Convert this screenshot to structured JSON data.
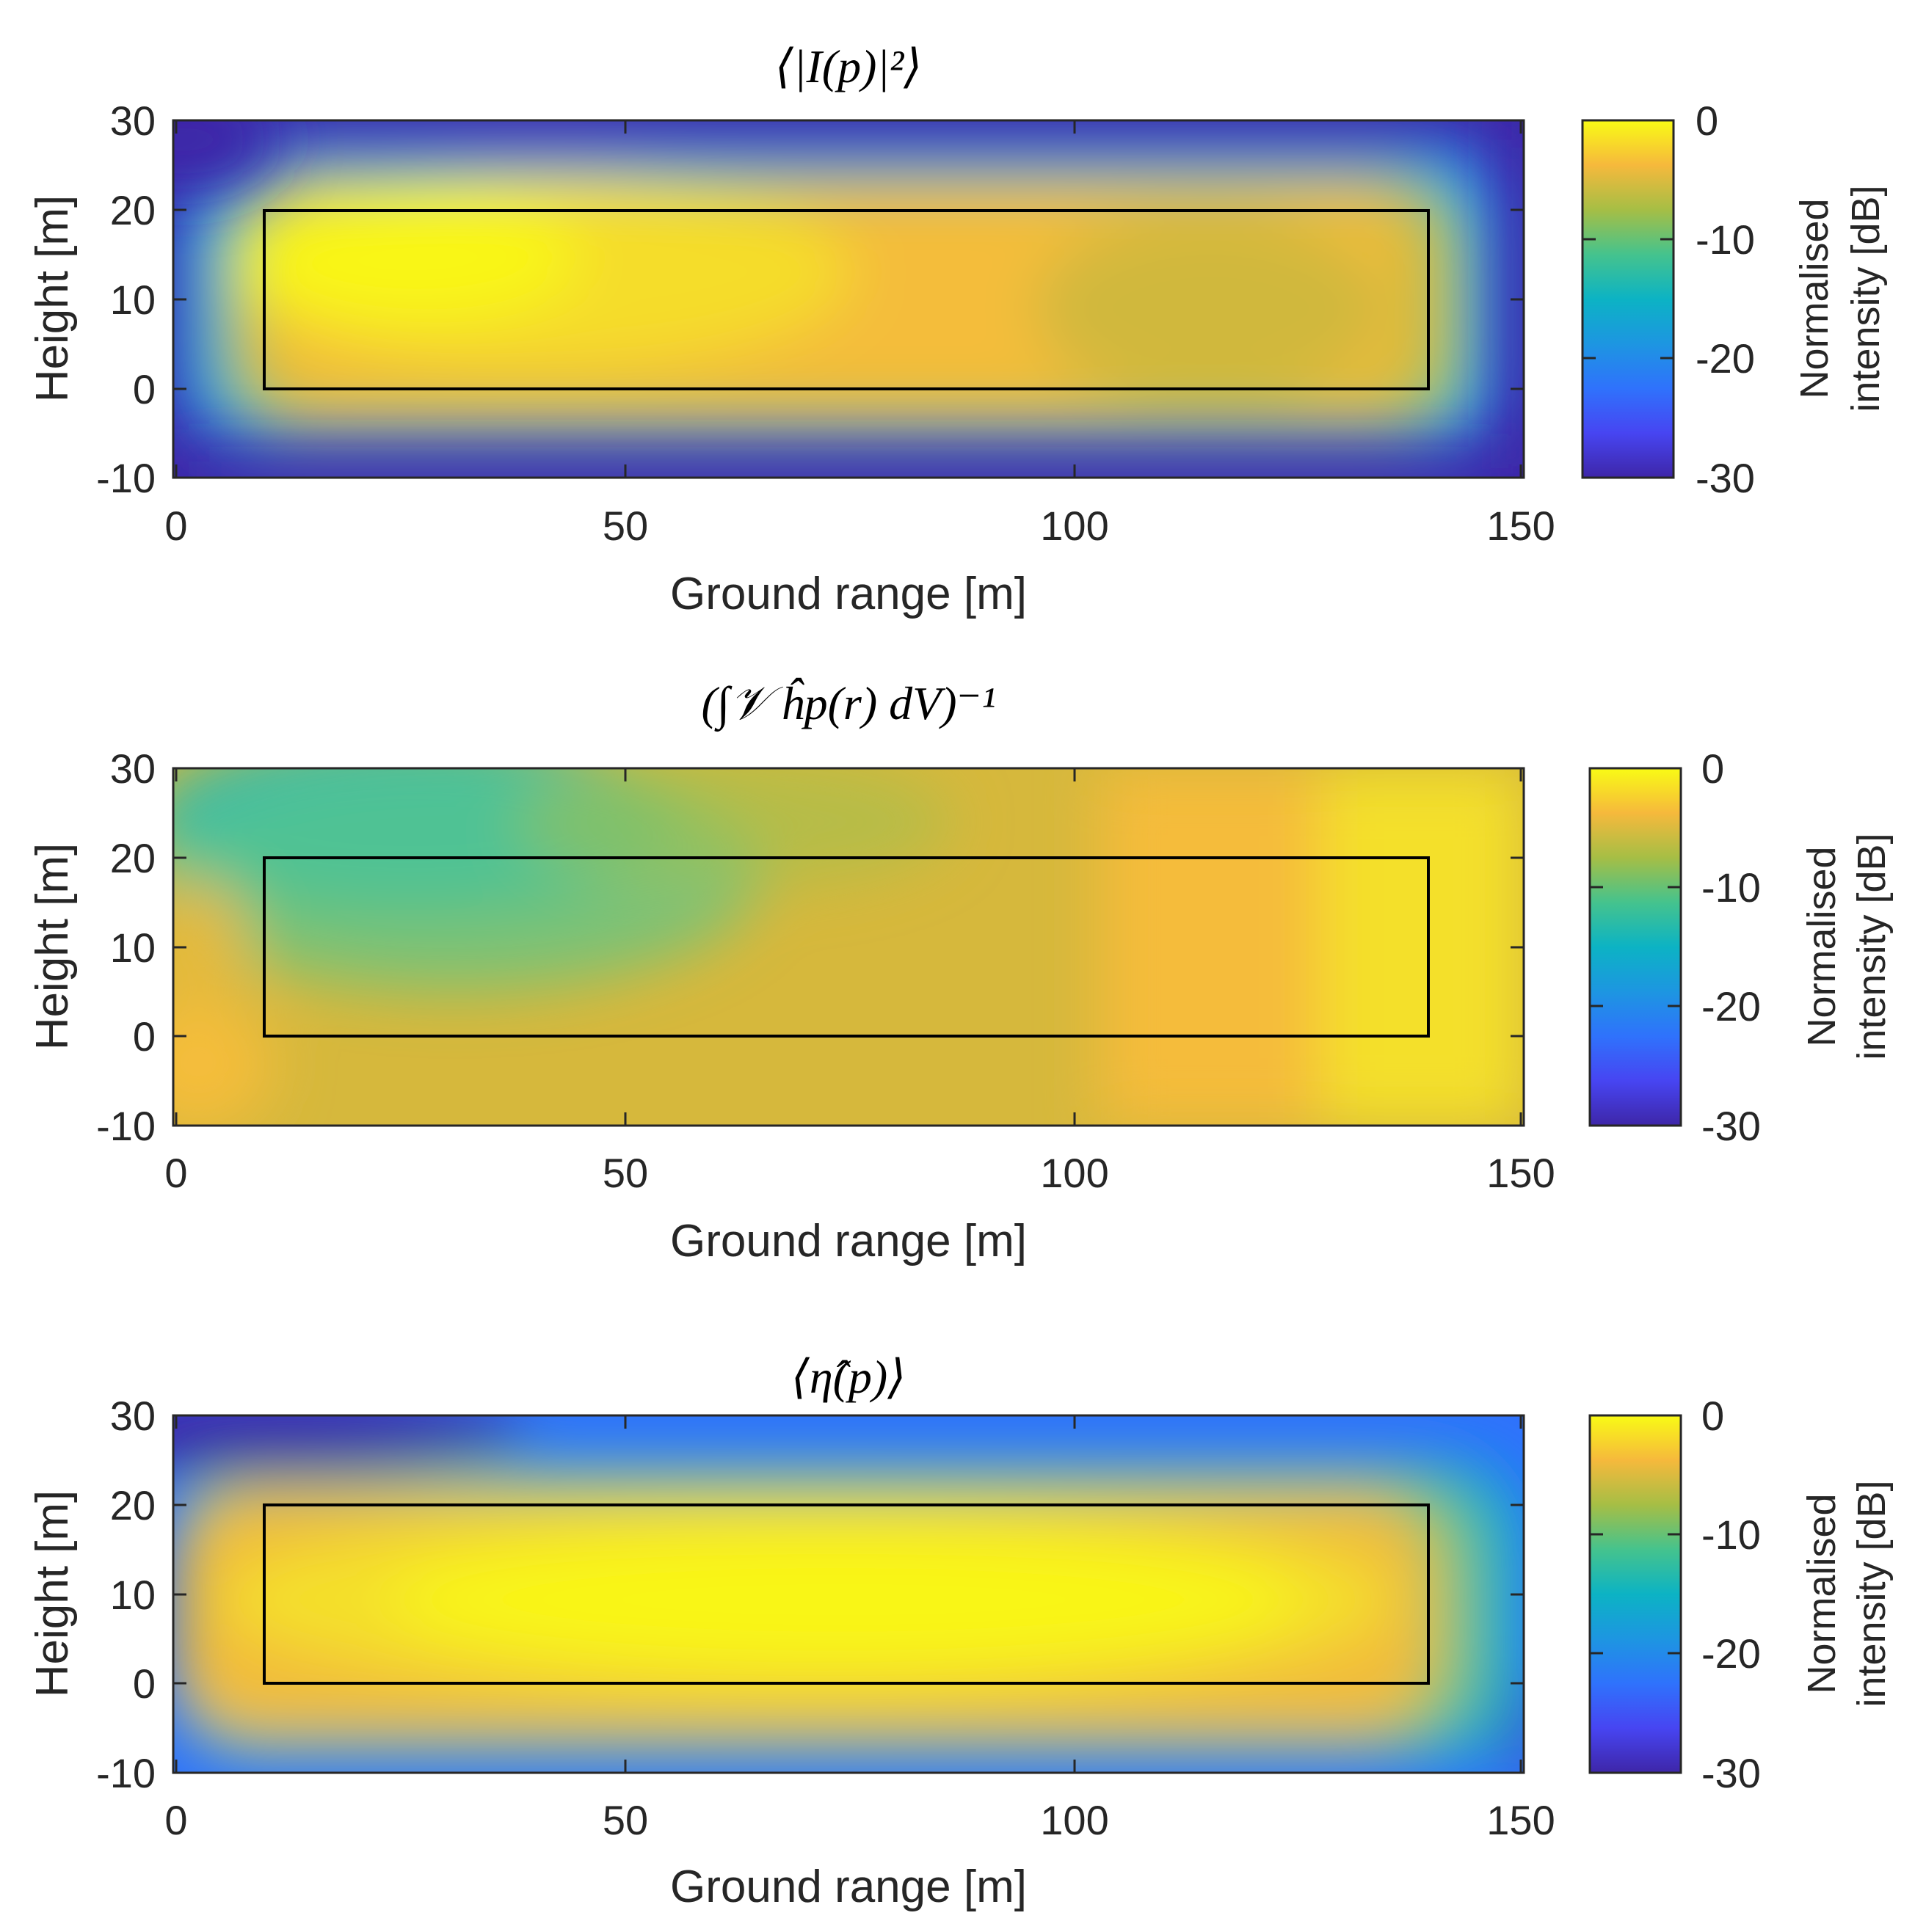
{
  "chart_data": [
    {
      "type": "heatmap",
      "title": "⟨|I(p)|²⟩",
      "xlabel": "Ground range [m]",
      "ylabel": "Height [m]",
      "xlim": [
        0,
        150
      ],
      "ylim": [
        -10,
        30
      ],
      "xticks": [
        "0",
        "50",
        "100",
        "150"
      ],
      "yticks": [
        "30",
        "20",
        "10",
        "0",
        "-10"
      ],
      "colorbar": {
        "label": [
          "Normalised",
          "intensity [dB]"
        ],
        "ticks": [
          "0",
          "-10",
          "-20",
          "-30"
        ],
        "range": [
          -30,
          0
        ]
      },
      "overlay_rectangle": {
        "x": [
          10,
          140
        ],
        "y": [
          0,
          20
        ]
      },
      "field_peak": {
        "x": 28,
        "y": 14,
        "value_db": 0
      }
    },
    {
      "type": "heatmap",
      "title": "(∫𝒱 ĥp(r) dV)⁻¹",
      "xlabel": "Ground range [m]",
      "ylabel": "Height [m]",
      "xlim": [
        0,
        150
      ],
      "ylim": [
        -10,
        30
      ],
      "xticks": [
        "0",
        "50",
        "100",
        "150"
      ],
      "yticks": [
        "30",
        "20",
        "10",
        "0",
        "-10"
      ],
      "colorbar": {
        "label": [
          "Normalised",
          "intensity [dB]"
        ],
        "ticks": [
          "0",
          "-10",
          "-20",
          "-30"
        ],
        "range": [
          -30,
          0
        ]
      },
      "overlay_rectangle": {
        "x": [
          10,
          140
        ],
        "y": [
          0,
          20
        ]
      },
      "field_minimum": {
        "x": 20,
        "y": 27,
        "value_db": -15
      }
    },
    {
      "type": "heatmap",
      "title": "⟨η̂(p)⟩",
      "xlabel": "Ground range [m]",
      "ylabel": "Height [m]",
      "xlim": [
        0,
        150
      ],
      "ylim": [
        -10,
        30
      ],
      "xticks": [
        "0",
        "50",
        "100",
        "150"
      ],
      "yticks": [
        "30",
        "20",
        "10",
        "0",
        "-10"
      ],
      "colorbar": {
        "label": [
          "Normalised",
          "intensity [dB]"
        ],
        "ticks": [
          "0",
          "-10",
          "-20",
          "-30"
        ],
        "range": [
          -30,
          0
        ]
      },
      "overlay_rectangle": {
        "x": [
          10,
          140
        ],
        "y": [
          0,
          20
        ]
      },
      "field_peak": {
        "x": 80,
        "y": 10,
        "value_db": 0
      }
    }
  ]
}
